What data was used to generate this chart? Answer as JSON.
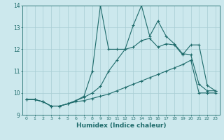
{
  "xlabel": "Humidex (Indice chaleur)",
  "ylabel": "",
  "bg_color": "#cce8ed",
  "grid_color": "#a8cdd4",
  "line_color": "#1e6b6b",
  "xlim": [
    -0.5,
    23.5
  ],
  "ylim": [
    9,
    14
  ],
  "yticks": [
    9,
    10,
    11,
    12,
    13,
    14
  ],
  "xticks": [
    0,
    1,
    2,
    3,
    4,
    5,
    6,
    7,
    8,
    9,
    10,
    11,
    12,
    13,
    14,
    15,
    16,
    17,
    18,
    19,
    20,
    21,
    22,
    23
  ],
  "series": [
    {
      "x": [
        0,
        1,
        2,
        3,
        4,
        5,
        6,
        7,
        8,
        9,
        10,
        11,
        12,
        13,
        14,
        15,
        16,
        17,
        18,
        19,
        20,
        21,
        22,
        23
      ],
      "y": [
        9.7,
        9.7,
        9.6,
        9.4,
        9.4,
        9.5,
        9.6,
        9.65,
        9.75,
        9.85,
        9.95,
        10.1,
        10.25,
        10.4,
        10.55,
        10.7,
        10.85,
        11.0,
        11.15,
        11.3,
        11.5,
        10.0,
        10.0,
        10.0
      ]
    },
    {
      "x": [
        0,
        1,
        2,
        3,
        4,
        5,
        6,
        7,
        8,
        9,
        10,
        11,
        12,
        13,
        14,
        15,
        16,
        17,
        18,
        19,
        20,
        21,
        22,
        23
      ],
      "y": [
        9.7,
        9.7,
        9.6,
        9.4,
        9.4,
        9.5,
        9.65,
        9.8,
        10.0,
        10.3,
        11.0,
        11.5,
        12.0,
        12.1,
        12.4,
        12.5,
        12.1,
        12.25,
        12.2,
        11.75,
        12.2,
        12.2,
        10.35,
        10.1
      ]
    },
    {
      "x": [
        0,
        1,
        2,
        3,
        4,
        5,
        6,
        7,
        8,
        9,
        10,
        11,
        12,
        13,
        14,
        15,
        16,
        17,
        18,
        19,
        20,
        21,
        22,
        23
      ],
      "y": [
        9.7,
        9.7,
        9.6,
        9.4,
        9.4,
        9.5,
        9.65,
        9.85,
        11.0,
        14.0,
        12.0,
        12.0,
        12.0,
        13.1,
        14.0,
        12.6,
        13.3,
        12.6,
        12.25,
        11.8,
        11.75,
        10.4,
        10.1,
        10.1
      ]
    }
  ]
}
